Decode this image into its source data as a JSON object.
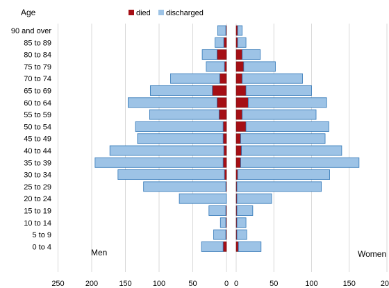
{
  "chart_data": {
    "type": "bar",
    "orientation": "horizontal",
    "layout": "population-pyramid",
    "stacked": true,
    "axis_title": "Age",
    "categories": [
      "90 and over",
      "85 to 89",
      "80 to 84",
      "75 to 79",
      "70 to 74",
      "65 to 69",
      "60 to 64",
      "55 to 59",
      "50 to 54",
      "45 to 49",
      "40 to 44",
      "35 to 39",
      "30 to 34",
      "25 to 29",
      "20 to 24",
      "15 to 19",
      "10 to 14",
      "5 to 9",
      "0 to 4"
    ],
    "legend": {
      "position": "top",
      "entries": [
        {
          "label": "died",
          "color": "#a50f15"
        },
        {
          "label": "discharged",
          "color": "#9dc3e6"
        }
      ]
    },
    "panels": [
      {
        "name": "Men",
        "direction": "left",
        "xlim": [
          250,
          0
        ],
        "ticks": [
          "250",
          "200",
          "150",
          "100",
          "50",
          "0"
        ],
        "tick_values": [
          250,
          200,
          150,
          100,
          50,
          0
        ],
        "series": [
          {
            "name": "died",
            "values": [
              1,
              4,
              14,
              3,
              10,
              21,
              14,
              11,
              5,
              5,
              4,
              5,
              3,
              1,
              0,
              1,
              1,
              1,
              5
            ]
          },
          {
            "name": "discharged",
            "values": [
              12,
              13,
              22,
              27,
              73,
              92,
              132,
              103,
              130,
              127,
              169,
              190,
              158,
              122,
              70,
              25,
              8,
              18,
              32
            ]
          }
        ]
      },
      {
        "name": "Women",
        "direction": "right",
        "xlim": [
          0,
          200
        ],
        "ticks": [
          "0",
          "50",
          "100",
          "150",
          "200"
        ],
        "tick_values": [
          0,
          50,
          100,
          150,
          200
        ],
        "series": [
          {
            "name": "died",
            "values": [
              2,
              2,
              8,
              10,
              8,
              13,
              16,
              8,
              13,
              6,
              7,
              6,
              2,
              1,
              1,
              1,
              1,
              1,
              3
            ]
          },
          {
            "name": "discharged",
            "values": [
              6,
              11,
              24,
              42,
              80,
              87,
              104,
              98,
              110,
              112,
              133,
              157,
              122,
              112,
              46,
              21,
              12,
              13,
              30
            ]
          }
        ]
      }
    ],
    "grid": true
  }
}
